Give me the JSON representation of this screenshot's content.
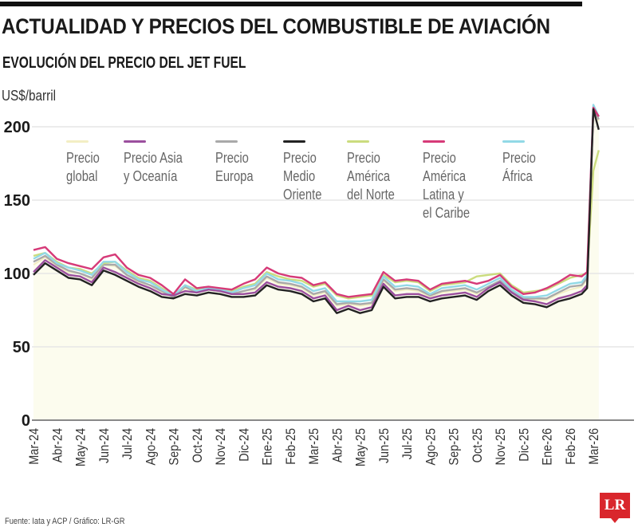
{
  "header": {
    "title": "ACTUALIDAD Y PRECIOS DEL COMBUSTIBLE DE AVIACIÓN",
    "subtitle": "EVOLUCIÓN DEL PRECIO DEL JET FUEL"
  },
  "footer": {
    "source": "Fuente: Iata y ACP / Gráfico: LR-GR",
    "logo": "LR"
  },
  "chart_data": {
    "type": "line",
    "title": "EVOLUCIÓN DEL PRECIO DEL JET FUEL",
    "ylabel": "US$/barril",
    "xlabel": "",
    "ylim": [
      0,
      220
    ],
    "yticks": [
      0,
      50,
      100,
      150,
      200
    ],
    "grid": true,
    "legend_position": "top",
    "xtick_labels": [
      "Mar-24",
      "Abr-24",
      "May-24",
      "Jun-24",
      "Jul-24",
      "Ago-24",
      "Sep-24",
      "Oct-24",
      "Nov-24",
      "Dic-24",
      "Ene-25",
      "Feb-25",
      "Mar-25",
      "Abr-25",
      "May-25",
      "Jun-25",
      "Jul-25",
      "Ago-25",
      "Sep-25",
      "Oct-25",
      "Nov-25",
      "Dic-25",
      "Ene-26",
      "Feb-26",
      "Mar-26"
    ],
    "x": [
      "2024-03-01",
      "2024-03-16",
      "2024-04-01",
      "2024-04-16",
      "2024-05-01",
      "2024-05-16",
      "2024-06-01",
      "2024-06-16",
      "2024-07-01",
      "2024-07-16",
      "2024-08-01",
      "2024-08-16",
      "2024-09-01",
      "2024-09-16",
      "2024-10-01",
      "2024-10-16",
      "2024-11-01",
      "2024-11-16",
      "2024-12-01",
      "2024-12-16",
      "2025-01-01",
      "2025-01-16",
      "2025-02-01",
      "2025-02-16",
      "2025-03-01",
      "2025-03-16",
      "2025-04-01",
      "2025-04-16",
      "2025-05-01",
      "2025-05-16",
      "2025-06-01",
      "2025-06-16",
      "2025-07-01",
      "2025-07-16",
      "2025-08-01",
      "2025-08-16",
      "2025-09-01",
      "2025-09-16",
      "2025-10-01",
      "2025-10-16",
      "2025-11-01",
      "2025-11-16",
      "2025-12-01",
      "2025-12-16",
      "2026-01-01",
      "2026-01-16",
      "2026-02-01",
      "2026-02-16",
      "2026-02-23",
      "2026-03-01",
      "2026-03-08"
    ],
    "series": [
      {
        "name": "Precio\nglobal",
        "color": "#f3eec4",
        "values": [
          106,
          111,
          105,
          101,
          100,
          96,
          106,
          105,
          99,
          94,
          92,
          87,
          84,
          90,
          87,
          89,
          88,
          86,
          88,
          89,
          97,
          93,
          92,
          90,
          85,
          87,
          78,
          79,
          78,
          79,
          95,
          88,
          89,
          88,
          84,
          87,
          88,
          89,
          86,
          91,
          95,
          87,
          82,
          82,
          82,
          86,
          89,
          91,
          96,
          212,
          204
        ]
      },
      {
        "name": "Precio Asia\ny Oceanía",
        "color": "#9b4f9e",
        "values": [
          101,
          109,
          104,
          99,
          98,
          94,
          104,
          101,
          97,
          93,
          90,
          86,
          85,
          88,
          87,
          89,
          88,
          86,
          86,
          87,
          94,
          91,
          90,
          88,
          83,
          85,
          75,
          78,
          75,
          77,
          93,
          85,
          86,
          86,
          83,
          85,
          86,
          87,
          84,
          90,
          94,
          87,
          82,
          81,
          79,
          83,
          85,
          88,
          92,
          212,
          207
        ]
      },
      {
        "name": "Precio\nEuropa",
        "color": "#a9a9a9",
        "values": [
          108,
          112,
          106,
          102,
          100,
          97,
          106,
          106,
          99,
          95,
          92,
          88,
          84,
          91,
          87,
          89,
          88,
          86,
          88,
          90,
          98,
          94,
          93,
          91,
          86,
          88,
          79,
          80,
          79,
          80,
          96,
          89,
          90,
          89,
          85,
          88,
          89,
          90,
          87,
          91,
          95,
          88,
          83,
          83,
          83,
          87,
          91,
          92,
          97,
          213,
          205
        ]
      },
      {
        "name": "Precio\nMedio\nOriente",
        "color": "#222222",
        "values": [
          99,
          107,
          102,
          97,
          96,
          92,
          102,
          99,
          95,
          91,
          88,
          84,
          83,
          86,
          85,
          87,
          86,
          84,
          84,
          85,
          92,
          89,
          88,
          86,
          81,
          83,
          73,
          76,
          73,
          75,
          91,
          83,
          84,
          84,
          81,
          83,
          84,
          85,
          82,
          88,
          92,
          85,
          80,
          79,
          77,
          81,
          83,
          86,
          90,
          212,
          198
        ]
      },
      {
        "name": "Precio\nAmérica\ndel Norte",
        "color": "#cbdc7e",
        "values": [
          112,
          114,
          108,
          104,
          103,
          100,
          107,
          108,
          102,
          97,
          95,
          90,
          85,
          92,
          89,
          90,
          89,
          88,
          91,
          93,
          101,
          98,
          96,
          95,
          91,
          93,
          85,
          83,
          84,
          85,
          99,
          94,
          95,
          94,
          88,
          92,
          93,
          94,
          98,
          99,
          100,
          92,
          87,
          88,
          89,
          93,
          97,
          99,
          100,
          170,
          184
        ]
      },
      {
        "name": "Precio\nAmérica\nLatina y\nel Caribe",
        "color": "#d63a78",
        "values": [
          116,
          118,
          110,
          107,
          105,
          103,
          111,
          113,
          104,
          99,
          97,
          92,
          86,
          96,
          90,
          91,
          90,
          89,
          93,
          96,
          104,
          100,
          98,
          97,
          92,
          94,
          86,
          84,
          85,
          86,
          101,
          95,
          96,
          95,
          89,
          93,
          94,
          95,
          93,
          95,
          99,
          91,
          86,
          87,
          90,
          94,
          99,
          98,
          101,
          213,
          207
        ]
      },
      {
        "name": "Precio\nÁfrica",
        "color": "#92d9e6",
        "values": [
          110,
          114,
          107,
          104,
          102,
          99,
          108,
          108,
          101,
          96,
          94,
          89,
          85,
          92,
          88,
          90,
          89,
          87,
          90,
          92,
          100,
          96,
          95,
          93,
          88,
          90,
          81,
          81,
          81,
          82,
          98,
          91,
          92,
          91,
          86,
          90,
          91,
          92,
          89,
          93,
          97,
          89,
          84,
          84,
          85,
          89,
          93,
          94,
          99,
          215,
          207
        ]
      }
    ]
  }
}
